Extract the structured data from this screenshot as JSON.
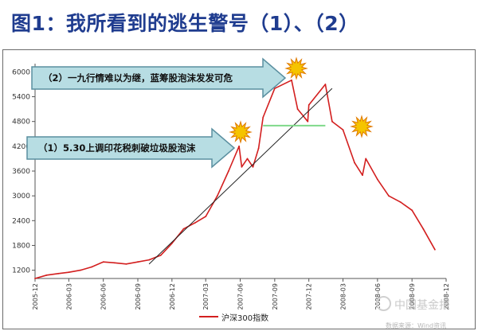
{
  "title": "图1：我所看到的逃生警号（1）、（2）",
  "watermark": {
    "text": "中国基金报",
    "source": "数据来源：Wind资讯"
  },
  "colors": {
    "title": "#1f3c8f",
    "series": "#d31f1f",
    "support": "#7fd98a",
    "arrow_fill": "#b7dde3",
    "arrow_stroke": "#5a8fa0",
    "star": "#f5c400",
    "star_stroke": "#e07a00"
  },
  "icons": [
    "star-burst-icon",
    "wechat-icon"
  ],
  "chart_data": {
    "type": "line",
    "xlabel": "",
    "ylabel": "",
    "x_ticks": [
      "2005-12",
      "2006-03",
      "2006-06",
      "2006-09",
      "2006-12",
      "2007-03",
      "2007-06",
      "2007-09",
      "2007-12",
      "2008-03",
      "2008-06",
      "2008-09",
      "2008-12"
    ],
    "y_ticks": [
      1200,
      1800,
      2400,
      3000,
      3600,
      4200,
      4800,
      5400,
      6000
    ],
    "ylim": [
      1000,
      6200
    ],
    "grid": false,
    "legend_position": "bottom",
    "series": [
      {
        "name": "沪深300指数",
        "x": [
          "2005-12",
          "2006-01",
          "2006-02",
          "2006-03",
          "2006-04",
          "2006-05",
          "2006-06",
          "2006-07",
          "2006-08",
          "2006-09",
          "2006-10",
          "2006-11",
          "2006-12",
          "2007-01",
          "2007-02",
          "2007-03",
          "2007-04",
          "2007-05",
          "2007-05-29",
          "2007-06-05",
          "2007-06-20",
          "2007-07-05",
          "2007-07-20",
          "2007-08",
          "2007-09",
          "2007-10-16",
          "2007-11",
          "2007-11-28",
          "2007-12",
          "2008-01-14",
          "2008-02",
          "2008-03",
          "2008-04",
          "2008-04-22",
          "2008-05",
          "2008-06",
          "2008-07",
          "2008-08",
          "2008-09",
          "2008-10",
          "2008-11"
        ],
        "values": [
          1000,
          1080,
          1120,
          1150,
          1200,
          1280,
          1400,
          1380,
          1350,
          1400,
          1450,
          1560,
          1850,
          2200,
          2350,
          2500,
          3000,
          3600,
          4200,
          3700,
          3900,
          3700,
          4150,
          4900,
          5600,
          5800,
          5100,
          4800,
          5200,
          5700,
          4800,
          4600,
          3800,
          3500,
          3900,
          3400,
          3000,
          2850,
          2650,
          2200,
          1700
        ]
      }
    ],
    "annotations": [
      {
        "type": "arrow",
        "label": "（1）5.30上调印花税刺破垃圾股泡沫",
        "marker": "star",
        "at_x": "2007-05-29"
      },
      {
        "type": "arrow",
        "label": "（2）一九行情难以为继，蓝筹股泡沫发发可危",
        "marker": "star",
        "at_x": "2007-10-16"
      },
      {
        "type": "trendline",
        "from": {
          "x": "2006-10",
          "y": 1350
        },
        "to": {
          "x": "2008-02",
          "y": 5600
        }
      },
      {
        "type": "support",
        "y": 4700,
        "from_x": "2007-08",
        "to_x": "2008-01-14",
        "marker": "star"
      }
    ]
  }
}
